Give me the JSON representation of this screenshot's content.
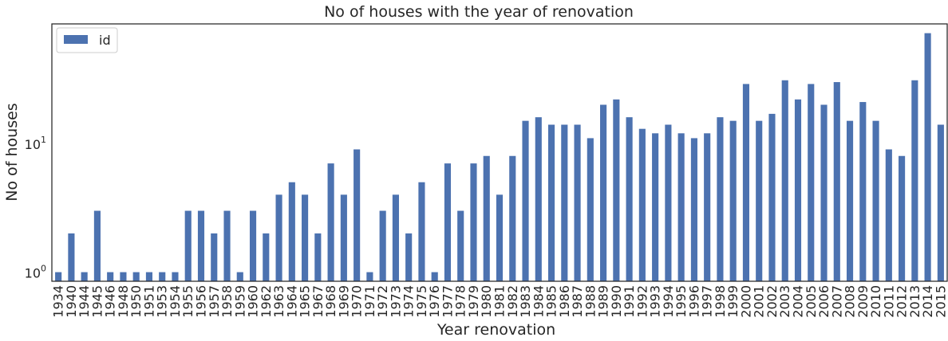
{
  "chart_data": {
    "type": "bar",
    "title": "No of houses with the year of renovation",
    "xlabel": "Year renovation",
    "ylabel": "No of houses",
    "yscale": "log",
    "ylim": [
      0.85,
      85
    ],
    "y_ticks": [
      {
        "value": 1,
        "base": "10",
        "exp": "0"
      },
      {
        "value": 10,
        "base": "10",
        "exp": "1"
      }
    ],
    "grid": false,
    "legend": {
      "position": "top-left",
      "entries": [
        "id"
      ]
    },
    "bar_color": "#4c72b0",
    "categories": [
      "1934",
      "1940",
      "1944",
      "1945",
      "1946",
      "1948",
      "1950",
      "1951",
      "1953",
      "1954",
      "1955",
      "1956",
      "1957",
      "1958",
      "1959",
      "1960",
      "1962",
      "1963",
      "1964",
      "1965",
      "1967",
      "1968",
      "1969",
      "1970",
      "1971",
      "1972",
      "1973",
      "1974",
      "1975",
      "1976",
      "1977",
      "1978",
      "1979",
      "1980",
      "1981",
      "1982",
      "1983",
      "1984",
      "1985",
      "1986",
      "1987",
      "1988",
      "1989",
      "1990",
      "1991",
      "1992",
      "1993",
      "1994",
      "1995",
      "1996",
      "1997",
      "1998",
      "1999",
      "2000",
      "2001",
      "2002",
      "2003",
      "2004",
      "2005",
      "2006",
      "2007",
      "2008",
      "2009",
      "2010",
      "2011",
      "2012",
      "2013",
      "2014",
      "2015"
    ],
    "series": [
      {
        "name": "id",
        "values": [
          1,
          2,
          1,
          3,
          1,
          1,
          1,
          1,
          1,
          1,
          3,
          3,
          2,
          3,
          1,
          3,
          2,
          4,
          5,
          4,
          2,
          7,
          4,
          9,
          1,
          3,
          4,
          2,
          5,
          1,
          7,
          3,
          7,
          8,
          4,
          8,
          15,
          16,
          14,
          14,
          14,
          11,
          20,
          22,
          16,
          13,
          12,
          14,
          12,
          11,
          12,
          16,
          15,
          29,
          15,
          17,
          31,
          22,
          29,
          20,
          30,
          15,
          21,
          15,
          9,
          8,
          31,
          72,
          14
        ]
      }
    ]
  }
}
